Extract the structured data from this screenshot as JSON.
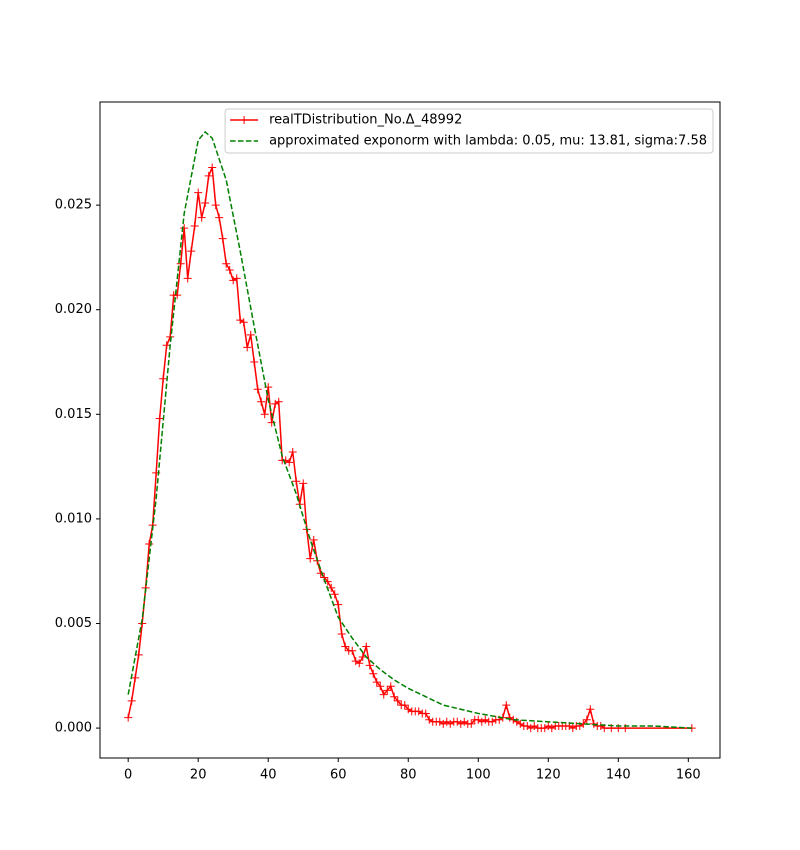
{
  "chart_data": {
    "type": "line",
    "xlim": [
      -8.05,
      169.05
    ],
    "ylim": [
      -0.00143,
      0.02993
    ],
    "xticks": [
      0,
      20,
      40,
      60,
      80,
      100,
      120,
      140,
      160
    ],
    "yticks": [
      {
        "value": 0,
        "label": "0.000"
      },
      {
        "value": 0.005,
        "label": "0.005"
      },
      {
        "value": 0.01,
        "label": "0.010"
      },
      {
        "value": 0.015,
        "label": "0.015"
      },
      {
        "value": 0.02,
        "label": "0.020"
      },
      {
        "value": 0.025,
        "label": "0.025"
      }
    ],
    "legend": "upper right",
    "series": [
      {
        "name": "realTDistribution_No.Δ_48992",
        "color": "#ff0000",
        "dash": "solid",
        "marker": "+",
        "x": [
          0,
          1,
          2,
          3,
          4,
          5,
          6,
          7,
          8,
          9,
          10,
          11,
          12,
          13,
          14,
          15,
          16,
          17,
          18,
          19,
          20,
          21,
          22,
          23,
          24,
          25,
          26,
          27,
          28,
          29,
          30,
          31,
          32,
          33,
          34,
          35,
          36,
          37,
          38,
          39,
          40,
          41,
          42,
          43,
          44,
          45,
          46,
          47,
          48,
          49,
          50,
          51,
          52,
          53,
          54,
          55,
          56,
          57,
          58,
          59,
          60,
          61,
          62,
          63,
          64,
          65,
          66,
          67,
          68,
          69,
          70,
          71,
          72,
          73,
          74,
          75,
          76,
          77,
          78,
          79,
          80,
          81,
          82,
          83,
          84,
          85,
          86,
          87,
          88,
          89,
          90,
          91,
          92,
          93,
          94,
          95,
          96,
          97,
          98,
          99,
          100,
          101,
          102,
          103,
          104,
          105,
          106,
          107,
          108,
          109,
          110,
          111,
          112,
          113,
          114,
          115,
          116,
          117,
          118,
          119,
          120,
          121,
          122,
          123,
          124,
          125,
          126,
          127,
          128,
          129,
          130,
          131,
          132,
          133,
          134,
          135,
          136,
          138,
          140,
          142,
          161
        ],
        "values": [
          0.0005,
          0.0013,
          0.0024,
          0.0035,
          0.005,
          0.0067,
          0.0088,
          0.0097,
          0.0122,
          0.0148,
          0.0167,
          0.0183,
          0.0187,
          0.0207,
          0.0207,
          0.0222,
          0.0239,
          0.0215,
          0.0228,
          0.024,
          0.0256,
          0.0244,
          0.0251,
          0.0264,
          0.0268,
          0.025,
          0.0244,
          0.0234,
          0.0222,
          0.0219,
          0.0214,
          0.0215,
          0.0195,
          0.0194,
          0.0182,
          0.0188,
          0.0175,
          0.0162,
          0.0156,
          0.015,
          0.0163,
          0.0146,
          0.0155,
          0.0156,
          0.0128,
          0.0128,
          0.0127,
          0.0132,
          0.0118,
          0.0107,
          0.0117,
          0.0095,
          0.0081,
          0.009,
          0.008,
          0.0074,
          0.0072,
          0.007,
          0.0067,
          0.0064,
          0.0059,
          0.0045,
          0.0039,
          0.0037,
          0.0037,
          0.0032,
          0.0031,
          0.0034,
          0.0039,
          0.003,
          0.0026,
          0.0022,
          0.002,
          0.0016,
          0.0018,
          0.002,
          0.0015,
          0.0013,
          0.0011,
          0.0011,
          0.0009,
          0.0008,
          0.0008,
          0.0008,
          0.0007,
          0.0007,
          0.0004,
          0.0003,
          0.0003,
          0.0003,
          0.0002,
          0.0003,
          0.0002,
          0.0003,
          0.0003,
          0.0002,
          0.0003,
          0.0002,
          0.0002,
          0.0004,
          0.0004,
          0.0003,
          0.0004,
          0.0003,
          0.0003,
          0.0004,
          0.0004,
          0.0005,
          0.0011,
          0.0005,
          0.0004,
          0.0003,
          0.0002,
          0.0001,
          0.0001,
          0,
          0.0001,
          0,
          0,
          0,
          0.0001,
          0,
          0.0001,
          0.0001,
          0.0001,
          0.0001,
          0.0001,
          0,
          0.0001,
          0.0001,
          0.0002,
          0.0004,
          0.0009,
          0.0002,
          0.0001,
          0.0001,
          0,
          0,
          0,
          0,
          0
        ]
      },
      {
        "name": "approximated exponorm with lambda: 0.05, mu: 13.81, sigma:7.58",
        "color": "#008000",
        "dash": "dashed",
        "x": [
          0,
          4,
          8,
          12,
          16,
          20,
          22,
          24,
          28,
          32,
          36,
          40,
          44,
          48,
          52,
          56,
          60,
          64,
          68,
          72,
          76,
          80,
          85,
          90,
          95,
          100,
          110,
          120,
          130,
          140,
          150,
          161
        ],
        "values": [
          0.0016,
          0.0052,
          0.011,
          0.0183,
          0.0246,
          0.0281,
          0.0285,
          0.0282,
          0.0262,
          0.0228,
          0.0192,
          0.0157,
          0.013,
          0.0112,
          0.009,
          0.0071,
          0.0053,
          0.0043,
          0.0034,
          0.0028,
          0.0023,
          0.0019,
          0.0015,
          0.0011,
          0.0009,
          0.0007,
          0.0004,
          0.0003,
          0.0002,
          0.0001,
          0.0001,
          0
        ]
      }
    ]
  }
}
